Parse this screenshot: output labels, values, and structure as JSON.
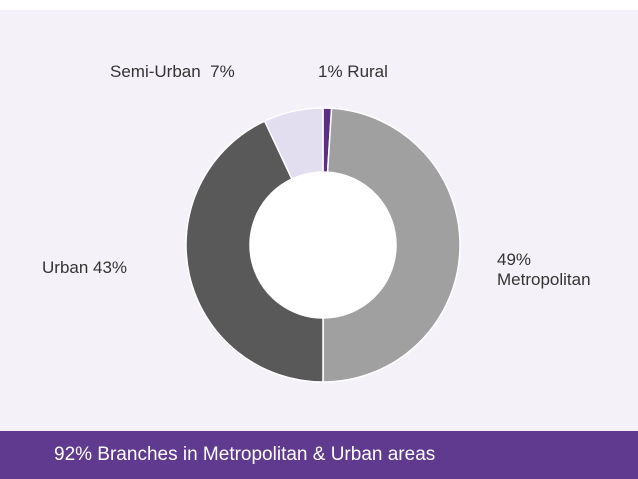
{
  "chart_data": {
    "type": "donut",
    "values": [
      1,
      49,
      43,
      7
    ],
    "value_labels": [
      "1% Rural",
      "49% Metropolitan",
      "Urban 43%",
      "Semi-Urban  7%"
    ],
    "colors": [
      "#5b2d83",
      "#a0a0a0",
      "#595959",
      "#e3deef"
    ],
    "annotation": "92% Branches in Metropolitan & Urban areas"
  }
}
